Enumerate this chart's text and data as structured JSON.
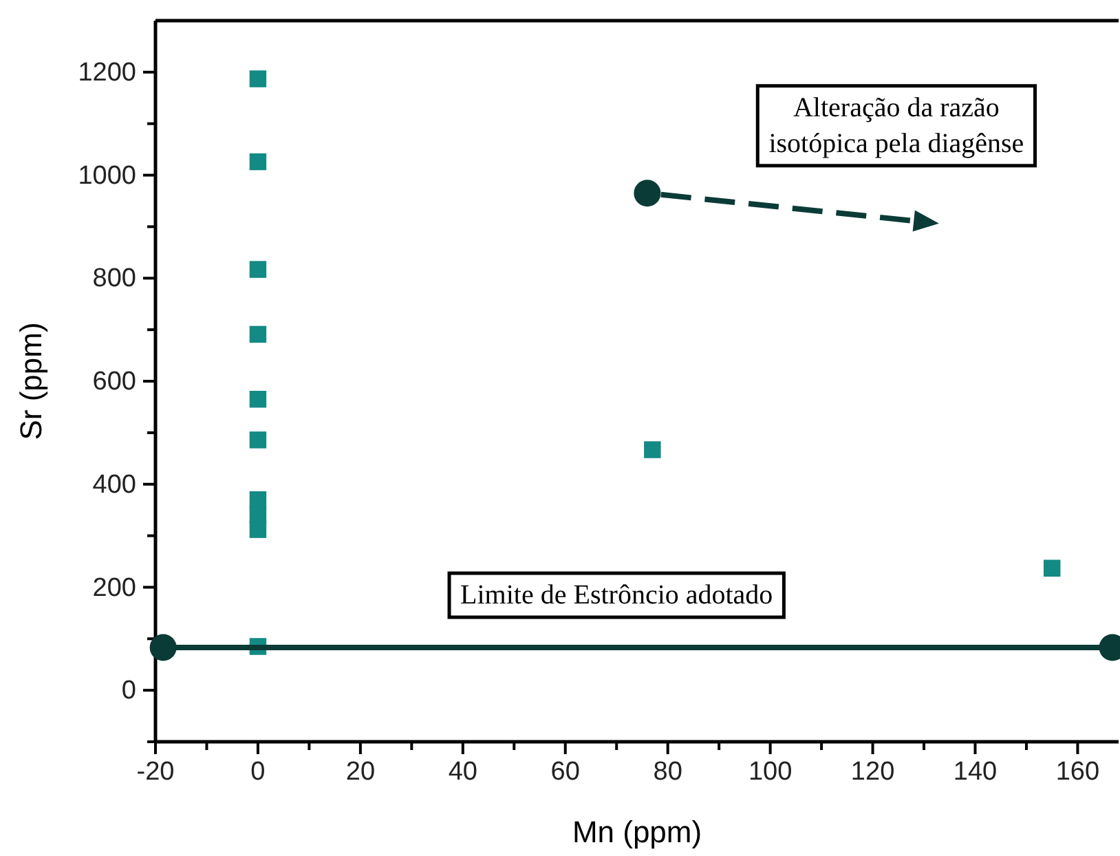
{
  "chart_data": {
    "type": "scatter",
    "xlabel": "Mn (ppm)",
    "ylabel": "Sr (ppm)",
    "marker": "square",
    "xlim": [
      -20,
      168
    ],
    "xticks": [
      -20,
      {
        "value": -10,
        "label": null
      },
      0,
      {
        "value": 10,
        "label": null
      },
      20,
      {
        "value": 30,
        "label": null
      },
      40,
      {
        "value": 50,
        "label": null
      },
      60,
      {
        "value": 70,
        "label": null
      },
      80,
      {
        "value": 90,
        "label": null
      },
      100,
      {
        "value": 110,
        "label": null
      },
      120,
      {
        "value": 130,
        "label": null
      },
      140,
      {
        "value": 150,
        "label": null
      },
      160
    ],
    "ylim": [
      -100,
      1300
    ],
    "yticks": [
      {
        "value": -100,
        "label": null
      },
      0,
      {
        "value": 100,
        "label": null
      },
      200,
      {
        "value": 300,
        "label": null
      },
      400,
      {
        "value": 500,
        "label": null
      },
      600,
      {
        "value": 700,
        "label": null
      },
      800,
      {
        "value": 900,
        "label": null
      },
      1000,
      {
        "value": 1100,
        "label": null
      },
      1200
    ],
    "series": [
      {
        "color": "#138a84",
        "x": [
          0,
          0,
          0,
          0,
          0,
          0,
          0,
          0,
          0,
          0,
          77,
          155
        ],
        "values": [
          1187,
          1026,
          817,
          691,
          565,
          486,
          370,
          340,
          312,
          85,
          467,
          237
        ]
      },
      {
        "type": "line",
        "color": "#0b3b37",
        "marker": "circle",
        "x": [
          -18.5,
          166.8
        ],
        "values": [
          83,
          83
        ]
      },
      {
        "type": "scatter",
        "color": "#0b3b37",
        "marker": "circle",
        "x": [
          76
        ],
        "values": [
          965
        ]
      }
    ],
    "annotations": [
      {
        "text": "Limite de Estrôncio adotado",
        "x": 70,
        "y": 83
      },
      "Alteração da razão\nisotópica pela diagênse"
    ]
  }
}
